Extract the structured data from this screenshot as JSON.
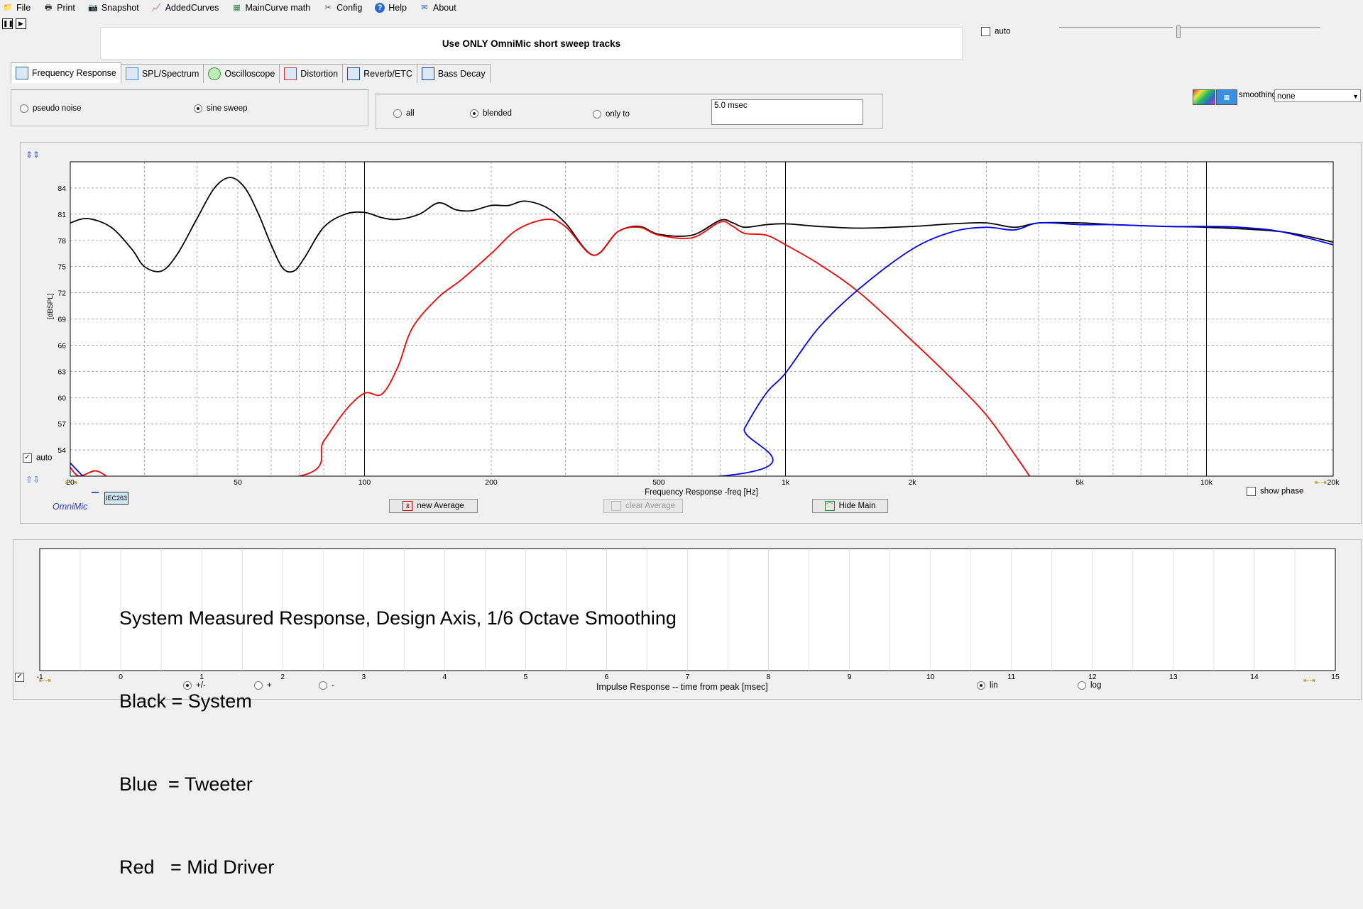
{
  "menu": [
    {
      "label": "File",
      "icon": "folder-icon"
    },
    {
      "label": "Print",
      "icon": "printer-icon"
    },
    {
      "label": "Snapshot",
      "icon": "camera-icon"
    },
    {
      "label": "AddedCurves",
      "icon": "curves-icon"
    },
    {
      "label": "MainCurve math",
      "icon": "calculator-icon"
    },
    {
      "label": "Config",
      "icon": "tools-icon"
    },
    {
      "label": "Help",
      "icon": "help-icon"
    },
    {
      "label": "About",
      "icon": "about-icon"
    }
  ],
  "banner": "Use ONLY OmniMic short sweep tracks",
  "top_auto_label": "auto",
  "tabs": [
    {
      "label": "Frequency Response",
      "active": true
    },
    {
      "label": "SPL/Spectrum"
    },
    {
      "label": "Oscilloscope"
    },
    {
      "label": "Distortion"
    },
    {
      "label": "Reverb/ETC"
    },
    {
      "label": "Bass Decay"
    }
  ],
  "signal": {
    "pseudo_noise": "pseudo noise",
    "sine_sweep": "sine sweep",
    "selected": "sine sweep"
  },
  "gating": {
    "all": "all",
    "blended": "blended",
    "only_to": "only to",
    "selected": "blended",
    "window_value": "5.0 msec"
  },
  "smoothing": {
    "label": "smoothing",
    "value": "none"
  },
  "fr_chart": {
    "ylabel": "[dBSPL]",
    "xlabel": "Frequency Response -freq [Hz]",
    "auto_label": "auto",
    "brand": "OmniMic",
    "legend_tag": "IEC263",
    "show_phase_label": "show phase",
    "buttons": {
      "new_average": "new Average",
      "clear_average": "clear Average",
      "hide_main": "Hide Main"
    }
  },
  "impulse": {
    "xlabel": "Impulse Response  -- time from peak [msec]",
    "annotation_lines": [
      "System Measured Response, Design Axis, 1/6 Octave Smoothing",
      "Black = System",
      "Blue  = Tweeter",
      "Red   = Mid Driver"
    ],
    "options": {
      "plus_minus": "+/-",
      "plus": "+",
      "minus": "-",
      "lin": "lin",
      "log": "log",
      "polarity_selected": "+/-",
      "scale_selected": "lin"
    }
  },
  "chart_data": [
    {
      "type": "line",
      "xlabel": "Frequency Response -freq [Hz]",
      "ylabel": "[dBSPL]",
      "x_scale": "log",
      "xlim": [
        20,
        20000
      ],
      "ylim": [
        51,
        87
      ],
      "x_tick_labels": [
        [
          "20",
          20
        ],
        [
          "50",
          50
        ],
        [
          "100",
          100
        ],
        [
          "200",
          200
        ],
        [
          "500",
          500
        ],
        [
          "1k",
          1000
        ],
        [
          "2k",
          2000
        ],
        [
          "5k",
          5000
        ],
        [
          "10k",
          10000
        ],
        [
          "20k",
          20000
        ]
      ],
      "y_ticks": [
        54,
        57,
        60,
        63,
        66,
        69,
        72,
        75,
        78,
        81,
        84
      ],
      "grid": true,
      "series": [
        {
          "color": "#000000",
          "x": [
            20,
            22,
            25,
            28,
            30,
            33,
            36,
            40,
            44,
            48,
            52,
            56,
            60,
            64,
            68,
            72,
            80,
            90,
            100,
            110,
            120,
            135,
            150,
            165,
            180,
            200,
            220,
            240,
            270,
            300,
            350,
            400,
            450,
            500,
            600,
            700,
            750,
            800,
            900,
            1000,
            1200,
            1500,
            2000,
            2500,
            3000,
            3500,
            4000,
            5000,
            6000,
            8000,
            10000,
            15000,
            20000
          ],
          "y": [
            80.0,
            80.5,
            79.5,
            77.0,
            75.0,
            74.5,
            76.5,
            80.5,
            84.0,
            85.2,
            84.0,
            81.0,
            77.5,
            74.8,
            74.5,
            76.0,
            79.5,
            81.0,
            81.2,
            80.6,
            80.4,
            81.0,
            82.3,
            81.5,
            81.4,
            82.0,
            82.0,
            82.5,
            81.8,
            80.0,
            76.3,
            79.0,
            79.6,
            78.7,
            78.6,
            80.3,
            80.0,
            79.5,
            79.8,
            79.9,
            79.6,
            79.4,
            79.6,
            79.9,
            80.0,
            79.5,
            80.0,
            80.0,
            79.8,
            79.6,
            79.5,
            79.0,
            77.8
          ]
        },
        {
          "color": "#ff0000",
          "x": [
            20,
            21,
            23,
            25,
            26,
            70,
            80,
            90,
            100,
            110,
            120,
            130,
            150,
            170,
            200,
            230,
            270,
            300,
            350,
            400,
            450,
            500,
            600,
            700,
            750,
            800,
            900,
            1000,
            1200,
            1500,
            2000,
            2500,
            3000,
            3500,
            3800
          ],
          "y": [
            52.0,
            51.0,
            51.6,
            50.6,
            50.0,
            51.0,
            55.0,
            58.5,
            60.5,
            60.4,
            63.5,
            68.0,
            71.5,
            73.5,
            76.5,
            79.2,
            80.4,
            79.6,
            76.3,
            79.0,
            79.5,
            78.6,
            78.3,
            80.1,
            79.6,
            78.8,
            78.6,
            77.5,
            75.3,
            72.0,
            66.5,
            62.0,
            58.0,
            53.5,
            51.0
          ]
        },
        {
          "color": "#0000ff",
          "x": [
            20,
            22,
            24,
            700,
            800,
            900,
            1000,
            1200,
            1500,
            2000,
            2500,
            3000,
            3500,
            4000,
            5000,
            6000,
            8000,
            10000,
            12000,
            15000,
            20000
          ],
          "y": [
            52.5,
            50.5,
            49.5,
            51.0,
            56.5,
            60.5,
            62.8,
            68.0,
            72.5,
            77.0,
            79.0,
            79.5,
            79.2,
            80.0,
            79.8,
            79.8,
            79.6,
            79.6,
            79.5,
            79.0,
            77.5
          ]
        }
      ]
    },
    {
      "type": "line",
      "xlabel": "Impulse Response  -- time from peak [msec]",
      "xlim": [
        -1,
        15
      ],
      "x_tick_labels": [
        [
          "-1",
          -1
        ],
        [
          "0",
          0
        ],
        [
          "1",
          1
        ],
        [
          "2",
          2
        ],
        [
          "3",
          3
        ],
        [
          "4",
          4
        ],
        [
          "5",
          5
        ],
        [
          "6",
          6
        ],
        [
          "7",
          7
        ],
        [
          "8",
          8
        ],
        [
          "9",
          9
        ],
        [
          "10",
          10
        ],
        [
          "11",
          11
        ],
        [
          "12",
          12
        ],
        [
          "13",
          13
        ],
        [
          "14",
          14
        ],
        [
          "15",
          15
        ]
      ],
      "grid": true,
      "series": []
    }
  ]
}
